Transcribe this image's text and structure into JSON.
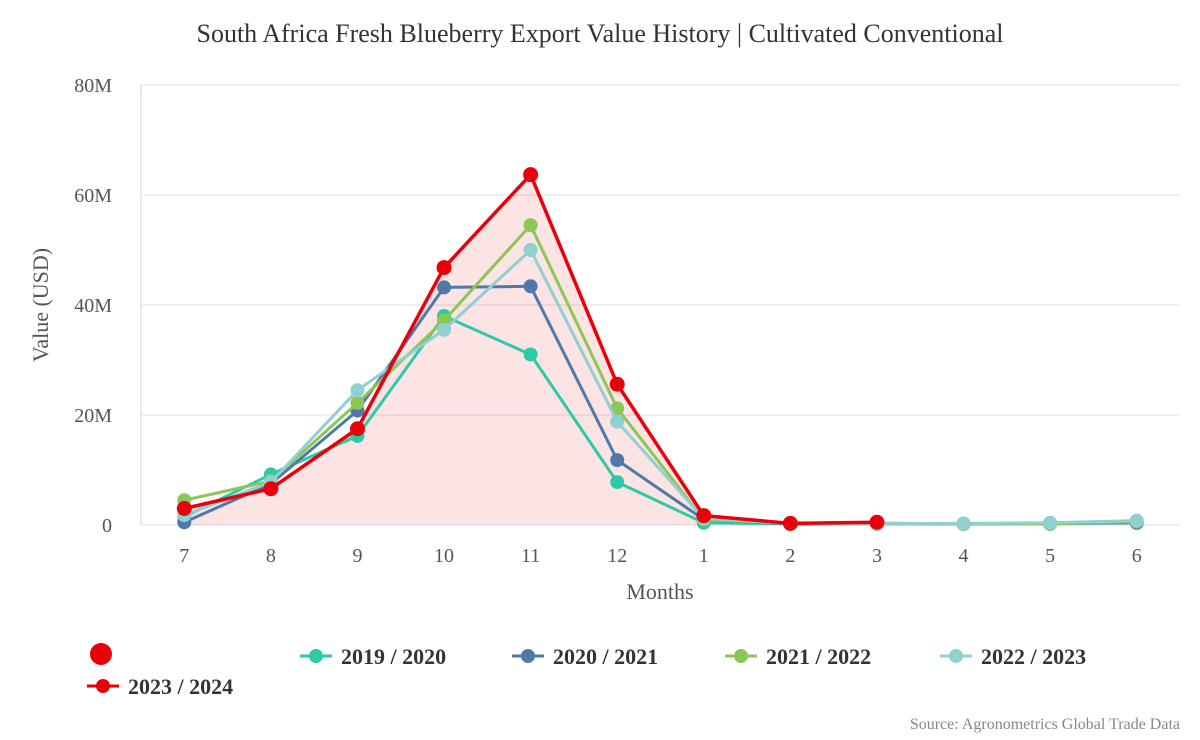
{
  "chart_data": {
    "type": "line",
    "title": "South Africa Fresh Blueberry Export Value History | Cultivated Conventional",
    "xlabel": "Months",
    "ylabel": "Value (USD)",
    "categories": [
      "7",
      "8",
      "9",
      "10",
      "11",
      "12",
      "1",
      "2",
      "3",
      "4",
      "5",
      "6"
    ],
    "ylim": [
      0,
      80000000
    ],
    "yticks": [
      {
        "value": 0,
        "label": "0"
      },
      {
        "value": 20000000,
        "label": "20M"
      },
      {
        "value": 40000000,
        "label": "40M"
      },
      {
        "value": 60000000,
        "label": "60M"
      },
      {
        "value": 80000000,
        "label": "80M"
      }
    ],
    "grid": true,
    "legend_position": "bottom",
    "series": [
      {
        "name": "2019 / 2020",
        "color": "#2ec9a6",
        "values": [
          1500000,
          9200000,
          16200000,
          38000000,
          31000000,
          7800000,
          400000,
          200000,
          200000,
          200000,
          200000,
          400000
        ]
      },
      {
        "name": "2020 / 2021",
        "color": "#4f79a8",
        "values": [
          500000,
          7500000,
          20800000,
          43200000,
          43400000,
          11800000,
          1000000,
          200000,
          300000,
          200000,
          300000,
          400000
        ]
      },
      {
        "name": "2021 / 2022",
        "color": "#8cc656",
        "values": [
          4500000,
          8000000,
          22200000,
          37200000,
          54500000,
          21200000,
          1000000,
          300000,
          300000,
          200000,
          200000,
          600000
        ]
      },
      {
        "name": "2022 / 2023",
        "color": "#8fd0d0",
        "values": [
          1800000,
          7800000,
          24500000,
          35500000,
          50000000,
          18800000,
          1200000,
          300000,
          300000,
          300000,
          400000,
          800000
        ]
      },
      {
        "name": "2023 / 2024",
        "color": "#e8000b",
        "area": true,
        "values": [
          3000000,
          6600000,
          17500000,
          46800000,
          63700000,
          25600000,
          1700000,
          300000,
          500000,
          null,
          null,
          null
        ]
      }
    ],
    "source": "Source: Agronometrics Global Trade Data"
  }
}
